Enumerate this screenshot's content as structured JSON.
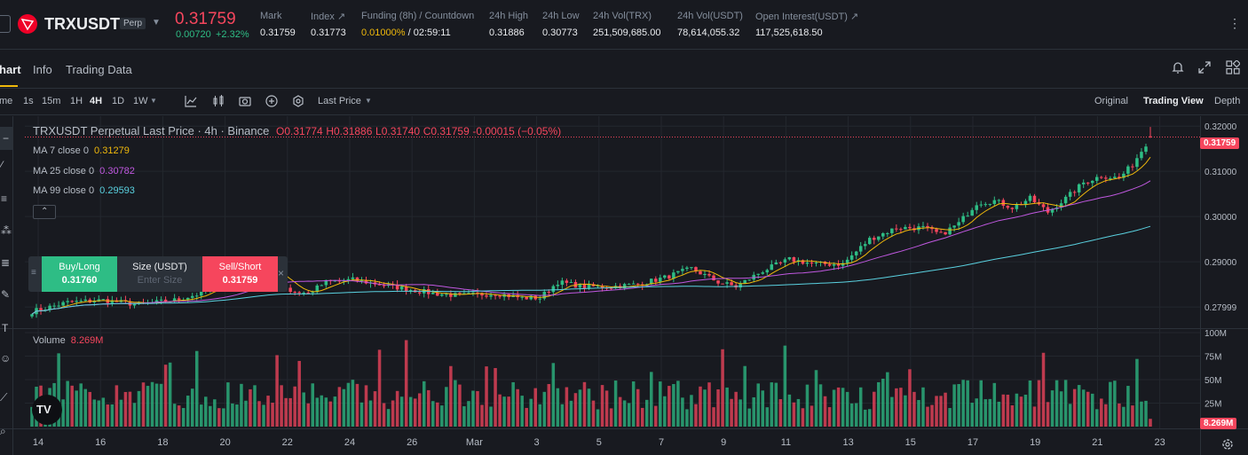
{
  "header": {
    "symbol": "TRXUSDT",
    "contract_badge": "Perp",
    "last_price": "0.31759",
    "change_abs": "0.00720",
    "change_pct": "+2.32%",
    "stats": [
      {
        "label": "Mark",
        "value": "0.31759"
      },
      {
        "label": "Index ↗",
        "value": "0.31773"
      },
      {
        "label": "Funding (8h) / Countdown",
        "value_funding": "0.01000%",
        "value_countdown": " / 02:59:11"
      },
      {
        "label": "24h High",
        "value": "0.31886"
      },
      {
        "label": "24h Low",
        "value": "0.30773"
      },
      {
        "label": "24h Vol(TRX)",
        "value": "251,509,685.00"
      },
      {
        "label": "24h Vol(USDT)",
        "value": "78,614,055.32"
      },
      {
        "label": "Open Interest(USDT) ↗",
        "value": "117,525,618.50"
      }
    ],
    "more": "⋮"
  },
  "tabs": [
    {
      "label": "hart",
      "active": true
    },
    {
      "label": "Info",
      "active": false
    },
    {
      "label": "Trading Data",
      "active": false
    }
  ],
  "toolbar": {
    "time_label": "me",
    "intervals": [
      "1s",
      "15m",
      "1H",
      "4H",
      "1D",
      "1W"
    ],
    "active_interval": "4H",
    "price_type": "Last Price",
    "views": [
      "Original",
      "Trading View",
      "Depth"
    ],
    "active_view": "Trading View"
  },
  "legend": {
    "title": "TRXUSDT Perpetual Last Price · 4h · Binance",
    "o": "O0.31774",
    "h": "H0.31886",
    "l": "L0.31740",
    "c": "C0.31759",
    "chg": "-0.00015 (−0.05%)",
    "ma": [
      {
        "label": "MA 7 close 0",
        "value": "0.31279",
        "color": "#f0b90b"
      },
      {
        "label": "MA 25 close 0",
        "value": "0.30782",
        "color": "#c058e0"
      },
      {
        "label": "MA 99 close 0",
        "value": "0.29593",
        "color": "#5ad1e0"
      }
    ],
    "volume_label": "Volume",
    "volume_value": "8.269M"
  },
  "trade": {
    "buy_label": "Buy/Long",
    "buy_price": "0.31760",
    "size_label": "Size (USDT)",
    "size_placeholder": "Enter Size",
    "sell_label": "Sell/Short",
    "sell_price": "0.31759",
    "close": "×"
  },
  "colors": {
    "up": "#2ebd85",
    "down": "#f6465d",
    "accent": "#f0b90b"
  },
  "chart_data": {
    "type": "candlestick",
    "price_axis_ticks": [
      "0.32000",
      "0.31000",
      "0.30000",
      "0.29000",
      "0.27999"
    ],
    "volume_axis_ticks": [
      "100M",
      "75M",
      "50M",
      "25M"
    ],
    "current_price_tag": "0.31759",
    "current_volume_tag": "8.269M",
    "x_ticks": [
      "14",
      "16",
      "18",
      "20",
      "22",
      "24",
      "26",
      "Mar",
      "3",
      "5",
      "7",
      "9",
      "11",
      "13",
      "15",
      "17",
      "19",
      "21",
      "23"
    ],
    "price_ylim": [
      0.2755,
      0.3222
    ],
    "volume_ylim": [
      0,
      100
    ],
    "close_keypoints": [
      [
        0,
        0.279
      ],
      [
        8,
        0.281
      ],
      [
        16,
        0.2815
      ],
      [
        24,
        0.2805
      ],
      [
        32,
        0.2815
      ],
      [
        38,
        0.283
      ],
      [
        44,
        0.286
      ],
      [
        50,
        0.289
      ],
      [
        54,
        0.2875
      ],
      [
        58,
        0.2835
      ],
      [
        62,
        0.283
      ],
      [
        66,
        0.2855
      ],
      [
        72,
        0.286
      ],
      [
        78,
        0.285
      ],
      [
        84,
        0.284
      ],
      [
        90,
        0.283
      ],
      [
        96,
        0.2825
      ],
      [
        104,
        0.283
      ],
      [
        110,
        0.282
      ],
      [
        114,
        0.282
      ],
      [
        118,
        0.2855
      ],
      [
        124,
        0.2845
      ],
      [
        130,
        0.2845
      ],
      [
        136,
        0.285
      ],
      [
        142,
        0.2865
      ],
      [
        148,
        0.2885
      ],
      [
        154,
        0.2855
      ],
      [
        158,
        0.2845
      ],
      [
        164,
        0.288
      ],
      [
        170,
        0.2905
      ],
      [
        176,
        0.2895
      ],
      [
        182,
        0.2895
      ],
      [
        188,
        0.295
      ],
      [
        194,
        0.2975
      ],
      [
        200,
        0.2975
      ],
      [
        204,
        0.296
      ],
      [
        208,
        0.2985
      ],
      [
        212,
        0.303
      ],
      [
        216,
        0.3035
      ],
      [
        220,
        0.302
      ],
      [
        224,
        0.304
      ],
      [
        228,
        0.301
      ],
      [
        232,
        0.304
      ],
      [
        236,
        0.3075
      ],
      [
        240,
        0.309
      ],
      [
        244,
        0.3085
      ],
      [
        247,
        0.3115
      ],
      [
        251,
        0.3176
      ]
    ]
  }
}
